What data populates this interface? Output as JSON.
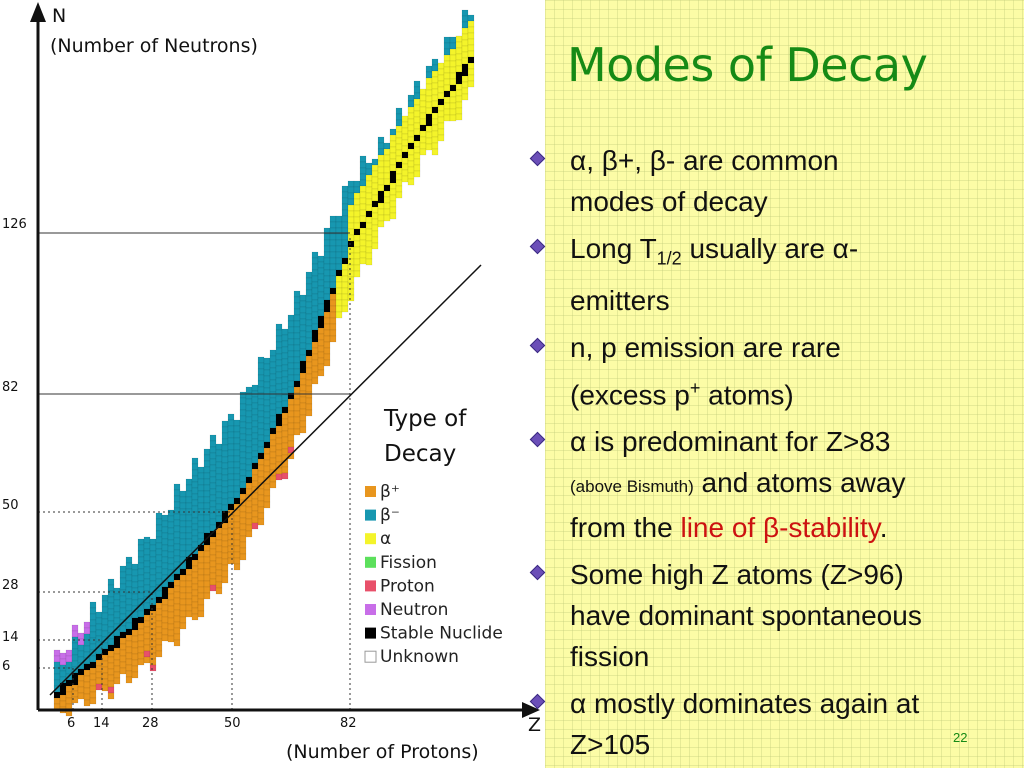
{
  "slide": {
    "title": "Modes of Decay",
    "number": "22"
  },
  "chart": {
    "y_axis_letter": "N",
    "y_axis_label": "(Number of Neutrons)",
    "x_axis_letter": "Z",
    "x_axis_label": "(Number of Protons)",
    "y_ticks": [
      "126",
      "82",
      "50",
      "28",
      "14",
      "6"
    ],
    "x_ticks": [
      "6",
      "14",
      "28",
      "50",
      "82"
    ],
    "legend_title_line1": "Type of",
    "legend_title_line2": "Decay",
    "legend": [
      {
        "label": "β⁺",
        "color": "#e8961e"
      },
      {
        "label": "β⁻",
        "color": "#1797b0"
      },
      {
        "label": "α",
        "color": "#f4f42a"
      },
      {
        "label": "Fission",
        "color": "#5ce05c"
      },
      {
        "label": "Proton",
        "color": "#e8506a"
      },
      {
        "label": "Neutron",
        "color": "#c86ee8"
      },
      {
        "label": "Stable Nuclide",
        "color": "#000000"
      },
      {
        "label": "Unknown",
        "color": "#ffffff"
      }
    ]
  },
  "bullets": [
    {
      "t1": "α, β+, β- are common",
      "t2": "modes of decay"
    },
    {
      "t1a": "Long T",
      "sub": "1/2",
      "t1b": " usually are α-",
      "t2": "emitters"
    },
    {
      "t1": "n, p emission are rare",
      "t2a": "(excess p",
      "sup": "+",
      "t2b": " atoms)"
    },
    {
      "t1": "α is predominant for Z>83",
      "small": "(above Bismuth)",
      "t2": " and atoms away",
      "t3a": "from the ",
      "t3red": "line of β-stability",
      "t3b": "."
    },
    {
      "t1": "Some high Z atoms (Z>96)",
      "t2": "have dominant spontaneous",
      "t3": "fission"
    },
    {
      "t1": "α mostly dominates again at",
      "t2": "Z>105"
    }
  ]
}
